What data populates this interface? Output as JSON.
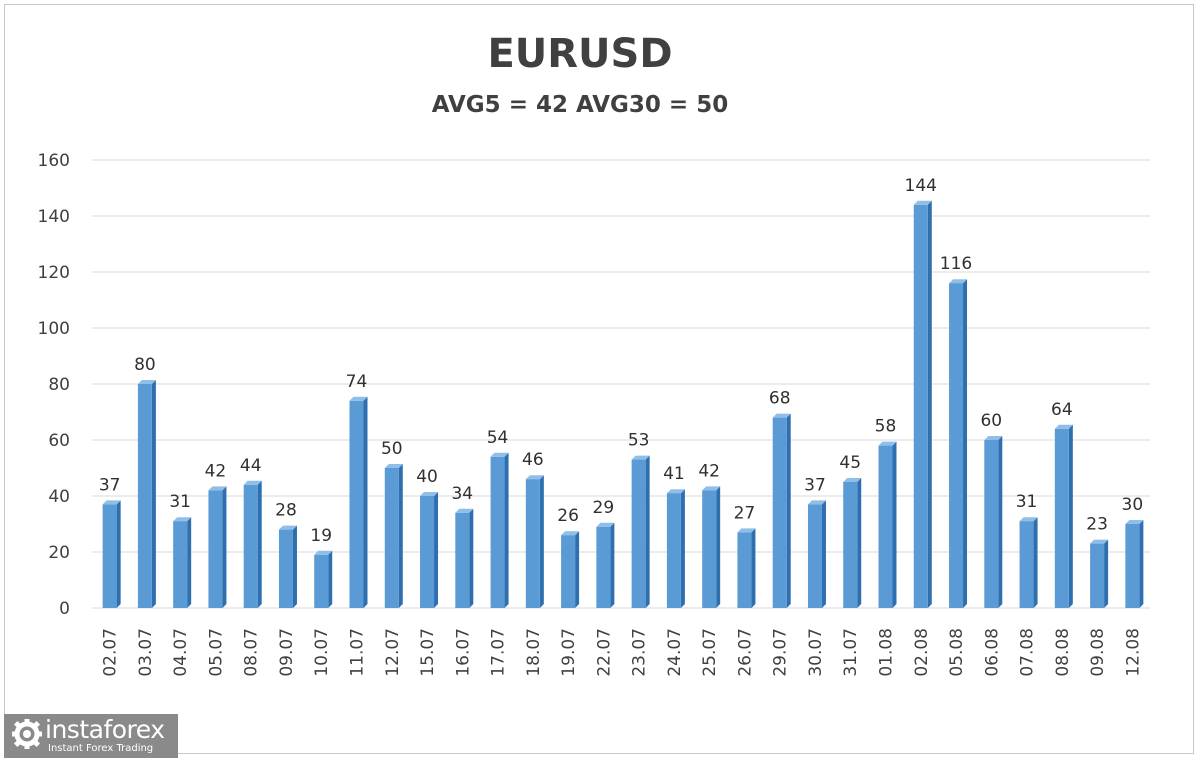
{
  "chart_data": {
    "type": "bar",
    "title": "EURUSD",
    "subtitle": "AVG5 = 42 AVG30 = 50",
    "categories": [
      "02.07",
      "03.07",
      "04.07",
      "05.07",
      "08.07",
      "09.07",
      "10.07",
      "11.07",
      "12.07",
      "15.07",
      "16.07",
      "17.07",
      "18.07",
      "19.07",
      "22.07",
      "23.07",
      "24.07",
      "25.07",
      "26.07",
      "29.07",
      "30.07",
      "31.07",
      "01.08",
      "02.08",
      "05.08",
      "06.08",
      "07.08",
      "08.08",
      "09.08",
      "12.08"
    ],
    "values": [
      37,
      80,
      31,
      42,
      44,
      28,
      19,
      74,
      50,
      40,
      34,
      54,
      46,
      26,
      29,
      53,
      41,
      42,
      27,
      68,
      37,
      45,
      58,
      144,
      116,
      60,
      31,
      64,
      23,
      30
    ],
    "ylim": [
      0,
      160
    ],
    "yticks": [
      0,
      20,
      40,
      60,
      80,
      100,
      120,
      140,
      160
    ],
    "data_labels": true,
    "grid": true,
    "colors": {
      "bar": "#5b9bd5",
      "bar_dark": "#2e6fb0",
      "grid": "#d9d9d9",
      "text": "#404040"
    }
  },
  "watermark": {
    "name": "instaforex",
    "tagline": "Instant Forex Trading"
  }
}
